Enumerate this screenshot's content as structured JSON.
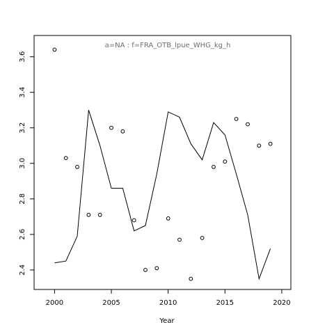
{
  "chart_data": {
    "type": "scatter",
    "title": "a=NA  :  f=FRA_OTB_lpue_WHG_kg_h",
    "xlabel": "Year",
    "ylabel": "",
    "xlim": [
      1998.2,
      2020.8
    ],
    "ylim": [
      2.29,
      3.72
    ],
    "x_ticks": [
      2000,
      2005,
      2010,
      2015,
      2020
    ],
    "y_ticks": [
      2.4,
      2.6,
      2.8,
      3.0,
      3.2,
      3.4,
      3.6
    ],
    "x_tick_labels": [
      "2000",
      "2005",
      "2010",
      "2015",
      "2020"
    ],
    "y_tick_labels": [
      "2.4",
      "2.6",
      "2.8",
      "3.0",
      "3.2",
      "3.4",
      "3.6"
    ],
    "grid": false,
    "legend": "none",
    "series": [
      {
        "type": "points",
        "x": [
          2000,
          2001,
          2002,
          2003,
          2004,
          2005,
          2006,
          2007,
          2008,
          2009,
          2010,
          2011,
          2012,
          2013,
          2014,
          2015,
          2016,
          2017,
          2018,
          2019
        ],
        "values": [
          3.64,
          3.03,
          2.98,
          2.71,
          2.71,
          3.2,
          3.18,
          2.68,
          2.4,
          2.41,
          2.69,
          2.57,
          2.35,
          2.58,
          2.98,
          3.01,
          3.25,
          3.22,
          3.1,
          3.11
        ]
      },
      {
        "type": "line",
        "x": [
          2000,
          2001,
          2002,
          2003,
          2004,
          2005,
          2006,
          2007,
          2008,
          2009,
          2010,
          2011,
          2012,
          2013,
          2014,
          2015,
          2016,
          2017,
          2018,
          2019
        ],
        "values": [
          2.44,
          2.45,
          2.59,
          3.3,
          3.1,
          2.86,
          2.86,
          2.62,
          2.65,
          2.94,
          3.29,
          3.26,
          3.11,
          3.02,
          3.23,
          3.16,
          2.94,
          2.71,
          2.35,
          2.52
        ]
      }
    ]
  }
}
